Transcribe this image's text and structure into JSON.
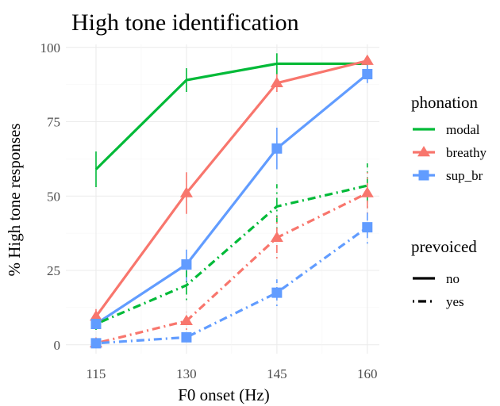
{
  "chart_data": {
    "type": "line",
    "title": "High tone identification",
    "xlabel": "F0 onset (Hz)",
    "ylabel": "% High tone responses",
    "x": [
      115,
      130,
      145,
      160
    ],
    "xlim": [
      110,
      162
    ],
    "ylim": [
      -3,
      101
    ],
    "xticks": [
      115,
      130,
      145,
      160
    ],
    "yticks": [
      0,
      25,
      50,
      75,
      100
    ],
    "grid": true,
    "legend_position": "right",
    "legends": [
      {
        "title": "phonation",
        "entries": [
          {
            "label": "modal",
            "color": "#00ba38",
            "marker": "none"
          },
          {
            "label": "breathy",
            "color": "#f8766d",
            "marker": "triangle"
          },
          {
            "label": "sup_br",
            "color": "#619cff",
            "marker": "square"
          }
        ]
      },
      {
        "title": "prevoiced",
        "entries": [
          {
            "label": "no",
            "linetype": "solid"
          },
          {
            "label": "yes",
            "linetype": "dotdash"
          }
        ]
      }
    ],
    "series": [
      {
        "phonation": "modal",
        "prevoiced": "no",
        "color": "#00ba38",
        "linetype": "solid",
        "marker": "none",
        "values": [
          59,
          89,
          94.5,
          94.5
        ],
        "err_low": [
          53,
          85,
          91,
          92
        ],
        "err_high": [
          65,
          93,
          98,
          97
        ]
      },
      {
        "phonation": "breathy",
        "prevoiced": "no",
        "color": "#f8766d",
        "linetype": "solid",
        "marker": "triangle",
        "values": [
          9.5,
          51,
          88,
          95.5
        ],
        "err_low": [
          7,
          44,
          85,
          94
        ],
        "err_high": [
          12,
          58,
          91,
          97
        ]
      },
      {
        "phonation": "sup_br",
        "prevoiced": "no",
        "color": "#619cff",
        "linetype": "solid",
        "marker": "square",
        "values": [
          7,
          27,
          66,
          91
        ],
        "err_low": [
          5,
          21,
          59,
          88
        ],
        "err_high": [
          9,
          32,
          73,
          94
        ]
      },
      {
        "phonation": "modal",
        "prevoiced": "yes",
        "color": "#00ba38",
        "linetype": "dotdash",
        "marker": "none",
        "values": [
          7,
          20,
          46.5,
          53.5
        ],
        "err_low": [
          5,
          15,
          39,
          46
        ],
        "err_high": [
          9,
          25,
          54,
          61
        ]
      },
      {
        "phonation": "breathy",
        "prevoiced": "yes",
        "color": "#f8766d",
        "linetype": "dotdash",
        "marker": "triangle",
        "values": [
          0.5,
          8,
          36,
          51
        ],
        "err_low": [
          0,
          5,
          29,
          44
        ],
        "err_high": [
          1.5,
          11,
          43,
          58
        ]
      },
      {
        "phonation": "sup_br",
        "prevoiced": "yes",
        "color": "#619cff",
        "linetype": "dotdash",
        "marker": "square",
        "values": [
          0.5,
          2.5,
          17.5,
          39.5
        ],
        "err_low": [
          0,
          1,
          13,
          34
        ],
        "err_high": [
          1.5,
          4,
          22,
          45
        ]
      }
    ]
  }
}
